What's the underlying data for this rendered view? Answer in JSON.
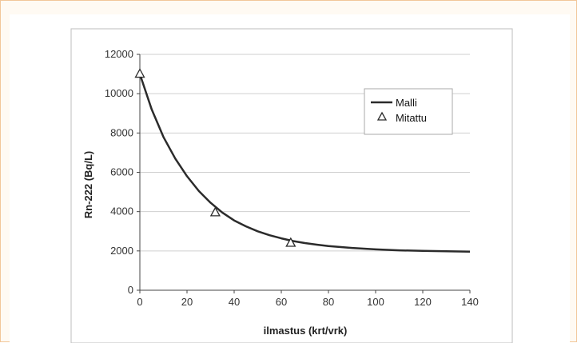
{
  "chart_data": {
    "type": "line",
    "xlabel": "ilmastus (krt/vrk)",
    "ylabel": "Rn-222 (Bq/L)",
    "xlim": [
      0,
      140
    ],
    "ylim": [
      0,
      12000
    ],
    "x_ticks": [
      "0",
      "20",
      "40",
      "60",
      "80",
      "100",
      "120",
      "140"
    ],
    "y_ticks": [
      "0",
      "2000",
      "4000",
      "6000",
      "8000",
      "10000",
      "12000"
    ],
    "grid": "horizontal",
    "legend_position": "right",
    "series": [
      {
        "name": "Malli",
        "kind": "line",
        "color": "#2b2b2b",
        "x": [
          0,
          5,
          10,
          15,
          20,
          25,
          30,
          35,
          40,
          45,
          50,
          55,
          60,
          65,
          70,
          75,
          80,
          90,
          100,
          110,
          120,
          130,
          140
        ],
        "y": [
          11000,
          9200,
          7800,
          6700,
          5800,
          5050,
          4450,
          3950,
          3550,
          3250,
          3000,
          2800,
          2640,
          2500,
          2400,
          2320,
          2250,
          2150,
          2080,
          2030,
          2000,
          1980,
          1960
        ]
      },
      {
        "name": "Mitattu",
        "kind": "marker",
        "marker": "triangle",
        "x": [
          0,
          32,
          64
        ],
        "y": [
          11000,
          3950,
          2400
        ]
      }
    ]
  }
}
